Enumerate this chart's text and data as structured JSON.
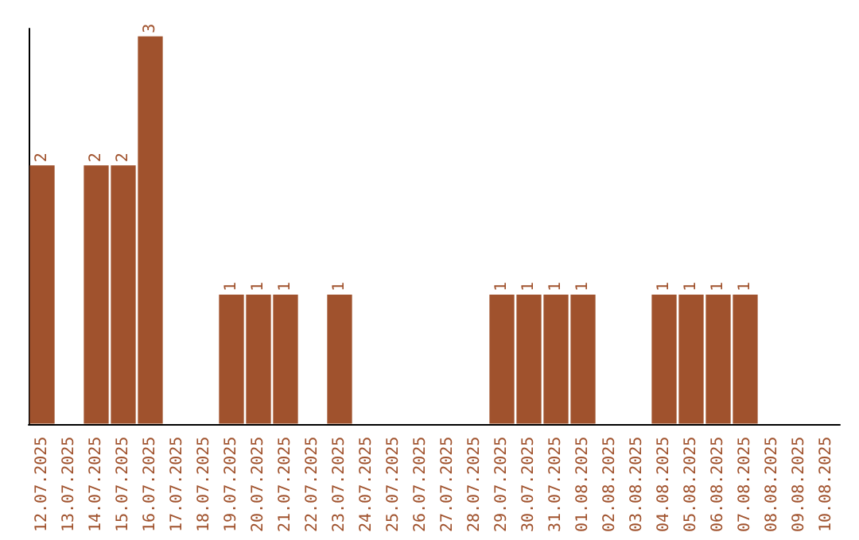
{
  "chart_data": {
    "type": "bar",
    "categories": [
      "12.07.2025",
      "13.07.2025",
      "14.07.2025",
      "15.07.2025",
      "16.07.2025",
      "17.07.2025",
      "18.07.2025",
      "19.07.2025",
      "20.07.2025",
      "21.07.2025",
      "22.07.2025",
      "23.07.2025",
      "24.07.2025",
      "25.07.2025",
      "26.07.2025",
      "27.07.2025",
      "28.07.2025",
      "29.07.2025",
      "30.07.2025",
      "31.07.2025",
      "01.08.2025",
      "02.08.2025",
      "03.08.2025",
      "04.08.2025",
      "05.08.2025",
      "06.08.2025",
      "07.08.2025",
      "08.08.2025",
      "09.08.2025",
      "10.08.2025"
    ],
    "values": [
      2,
      0,
      2,
      2,
      3,
      0,
      0,
      1,
      1,
      1,
      0,
      1,
      0,
      0,
      0,
      0,
      0,
      1,
      1,
      1,
      1,
      0,
      0,
      1,
      1,
      1,
      1,
      0,
      0,
      0
    ],
    "value_labels": [
      "2",
      null,
      "2",
      "2",
      "3",
      null,
      null,
      "1",
      "1",
      "1",
      null,
      "1",
      null,
      null,
      null,
      null,
      null,
      "1",
      "1",
      "1",
      "1",
      null,
      null,
      "1",
      "1",
      "1",
      "1",
      null,
      null,
      null
    ],
    "color": "#a0522d",
    "tick_labels": "x"
  }
}
